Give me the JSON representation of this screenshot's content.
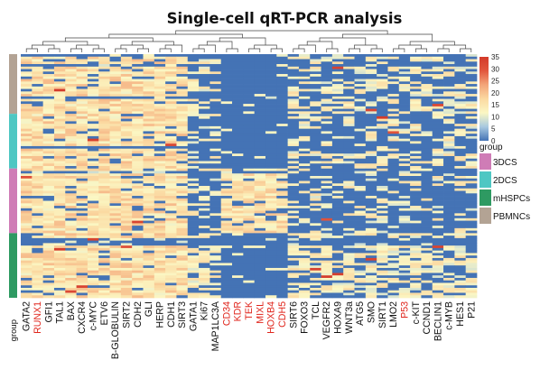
{
  "chart_data": {
    "type": "heatmap",
    "title": "Single-cell qRT-PCR analysis",
    "row_annotation_label": "group",
    "genes": [
      {
        "name": "GATA2",
        "highlight": false
      },
      {
        "name": "RUNX1",
        "highlight": true
      },
      {
        "name": "GFI1",
        "highlight": false
      },
      {
        "name": "TAL1",
        "highlight": false
      },
      {
        "name": "BAX",
        "highlight": false
      },
      {
        "name": "CXCR4",
        "highlight": false
      },
      {
        "name": "c-MYC",
        "highlight": false
      },
      {
        "name": "ETV6",
        "highlight": false
      },
      {
        "name": "B-GLOBULIN",
        "highlight": false
      },
      {
        "name": "SIRT2",
        "highlight": false
      },
      {
        "name": "CDH2",
        "highlight": false
      },
      {
        "name": "GLI",
        "highlight": false
      },
      {
        "name": "HERP",
        "highlight": false
      },
      {
        "name": "CDH1",
        "highlight": false
      },
      {
        "name": "SIRT3",
        "highlight": false
      },
      {
        "name": "GATA1",
        "highlight": false
      },
      {
        "name": "Ki67",
        "highlight": false
      },
      {
        "name": "MAP1LC3A",
        "highlight": false
      },
      {
        "name": "CD34",
        "highlight": true
      },
      {
        "name": "KDR",
        "highlight": true
      },
      {
        "name": "TEK",
        "highlight": true
      },
      {
        "name": "MIXL",
        "highlight": true
      },
      {
        "name": "HOXB4",
        "highlight": true
      },
      {
        "name": "CDH5",
        "highlight": true
      },
      {
        "name": "SIRT6",
        "highlight": false
      },
      {
        "name": "FOXO3",
        "highlight": false
      },
      {
        "name": "TCL",
        "highlight": false
      },
      {
        "name": "VEGFR2",
        "highlight": false
      },
      {
        "name": "HOXA9",
        "highlight": false
      },
      {
        "name": "WNT3a",
        "highlight": false
      },
      {
        "name": "ATG5",
        "highlight": false
      },
      {
        "name": "SMO",
        "highlight": false
      },
      {
        "name": "SIRT1",
        "highlight": false
      },
      {
        "name": "LMO2",
        "highlight": false
      },
      {
        "name": "P53",
        "highlight": true
      },
      {
        "name": "c-KIT",
        "highlight": false
      },
      {
        "name": "CCND1",
        "highlight": false
      },
      {
        "name": "BECLIN1",
        "highlight": false
      },
      {
        "name": "c-MYB",
        "highlight": false
      },
      {
        "name": "HES1",
        "highlight": false
      },
      {
        "name": "P21",
        "highlight": false
      }
    ],
    "groups": [
      {
        "name": "PBMNCs",
        "color": "#b3a394",
        "rows": 24
      },
      {
        "name": "2DCS",
        "color": "#4ec7c3",
        "rows": 22
      },
      {
        "name": "3DCS",
        "color": "#cf7cb6",
        "rows": 26
      },
      {
        "name": "mHSPCs",
        "color": "#2e9a62",
        "rows": 26
      }
    ],
    "legend_group_order": [
      "3DCS",
      "2DCS",
      "mHSPCs",
      "PBMNCs"
    ],
    "legend_title": "group",
    "colorbar": {
      "min": 0,
      "max": 35,
      "ticks": [
        0,
        5,
        10,
        15,
        20,
        25,
        30,
        35
      ],
      "colors": [
        "#4473b5",
        "#a8c9e0",
        "#fbf7c4",
        "#fbd9a1",
        "#f3a57a",
        "#e2573e",
        "#d33a2a"
      ]
    },
    "highlight_color": "#e0261d",
    "label_color": "#111111"
  }
}
